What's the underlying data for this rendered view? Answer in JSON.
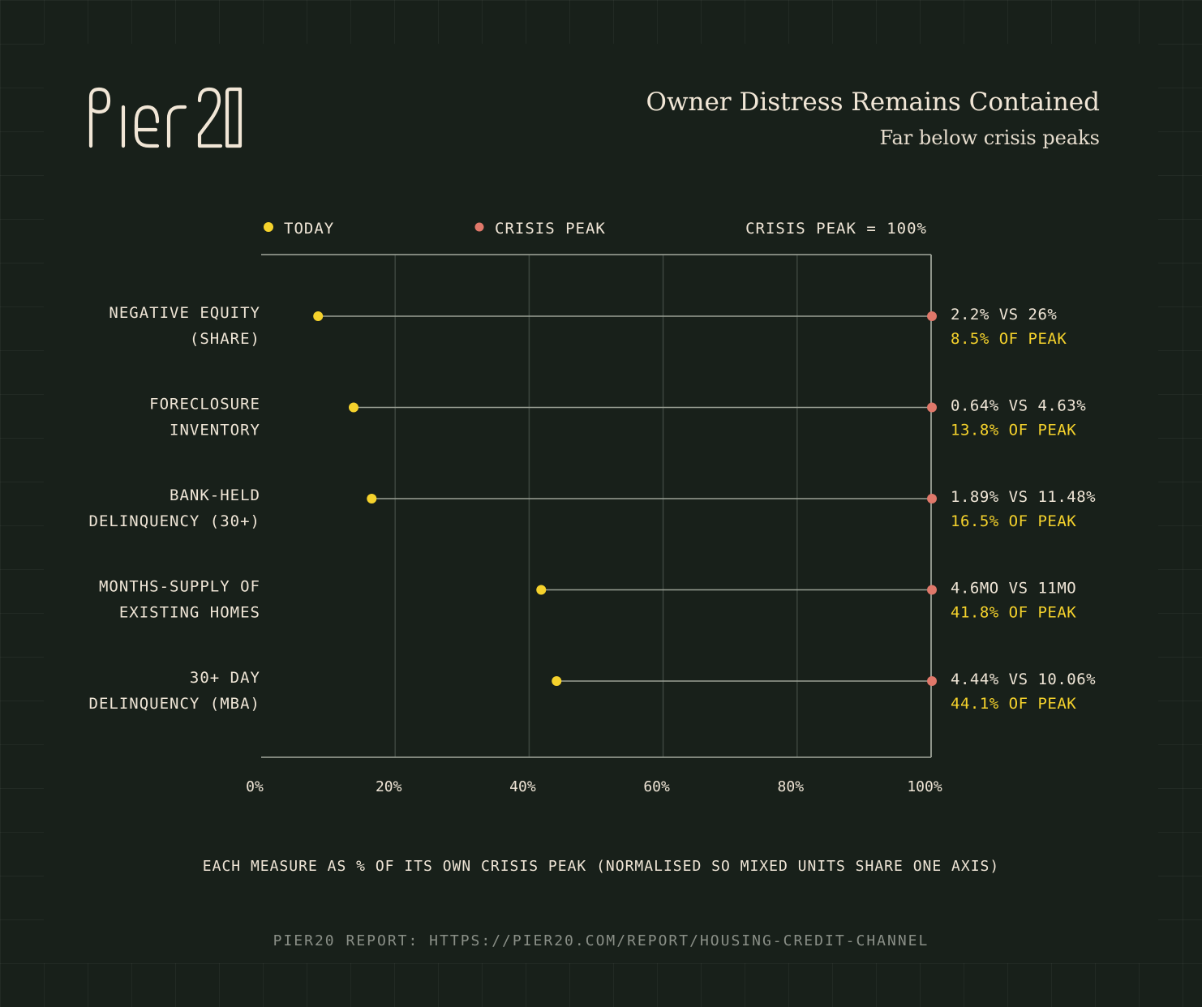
{
  "brand": {
    "logo_text": "PIER20"
  },
  "header": {
    "title": "Owner Distress Remains Contained",
    "subtitle": "Far below crisis peaks"
  },
  "colors": {
    "background": "#18201a",
    "today": "#f5d22c",
    "crisis_peak": "#e0786a",
    "text": "#efe5d6",
    "axis": "#8f958b",
    "grid": "#3d463f",
    "muted": "#8a8f87"
  },
  "chart_data": {
    "type": "dumbbell",
    "legend": [
      {
        "name": "TODAY",
        "color": "#f5d22c"
      },
      {
        "name": "CRISIS PEAK",
        "color": "#e0786a"
      }
    ],
    "legend_note": "CRISIS PEAK = 100%",
    "xlim": [
      0,
      100
    ],
    "x_ticks": [
      "0%",
      "20%",
      "40%",
      "60%",
      "80%",
      "100%"
    ],
    "xlabel": "EACH MEASURE AS % OF ITS OWN CRISIS PEAK (NORMALISED SO MIXED UNITS SHARE ONE AXIS)",
    "grid": true,
    "categories": [
      [
        "NEGATIVE EQUITY",
        "(SHARE)"
      ],
      [
        "FORECLOSURE",
        "INVENTORY"
      ],
      [
        "BANK-HELD",
        "DELINQUENCY (30+)"
      ],
      [
        "MONTHS-SUPPLY OF",
        "EXISTING HOMES"
      ],
      [
        "30+ DAY",
        "DELINQUENCY (MBA)"
      ]
    ],
    "series": [
      {
        "name": "TODAY",
        "values": [
          8.5,
          13.8,
          16.5,
          41.8,
          44.1
        ]
      },
      {
        "name": "CRISIS PEAK",
        "values": [
          100,
          100,
          100,
          100,
          100
        ]
      }
    ],
    "annotations": [
      [
        "2.2% VS 26%",
        "8.5% OF PEAK"
      ],
      [
        "0.64% VS 4.63%",
        "13.8% OF PEAK"
      ],
      [
        "1.89% VS 11.48%",
        "16.5% OF PEAK"
      ],
      [
        "4.6MO VS 11MO",
        "41.8% OF PEAK"
      ],
      [
        "4.44% VS 10.06%",
        "44.1% OF PEAK"
      ]
    ]
  },
  "footer": {
    "source": "PIER20 REPORT: HTTPS://PIER20.COM/REPORT/HOUSING-CREDIT-CHANNEL"
  }
}
